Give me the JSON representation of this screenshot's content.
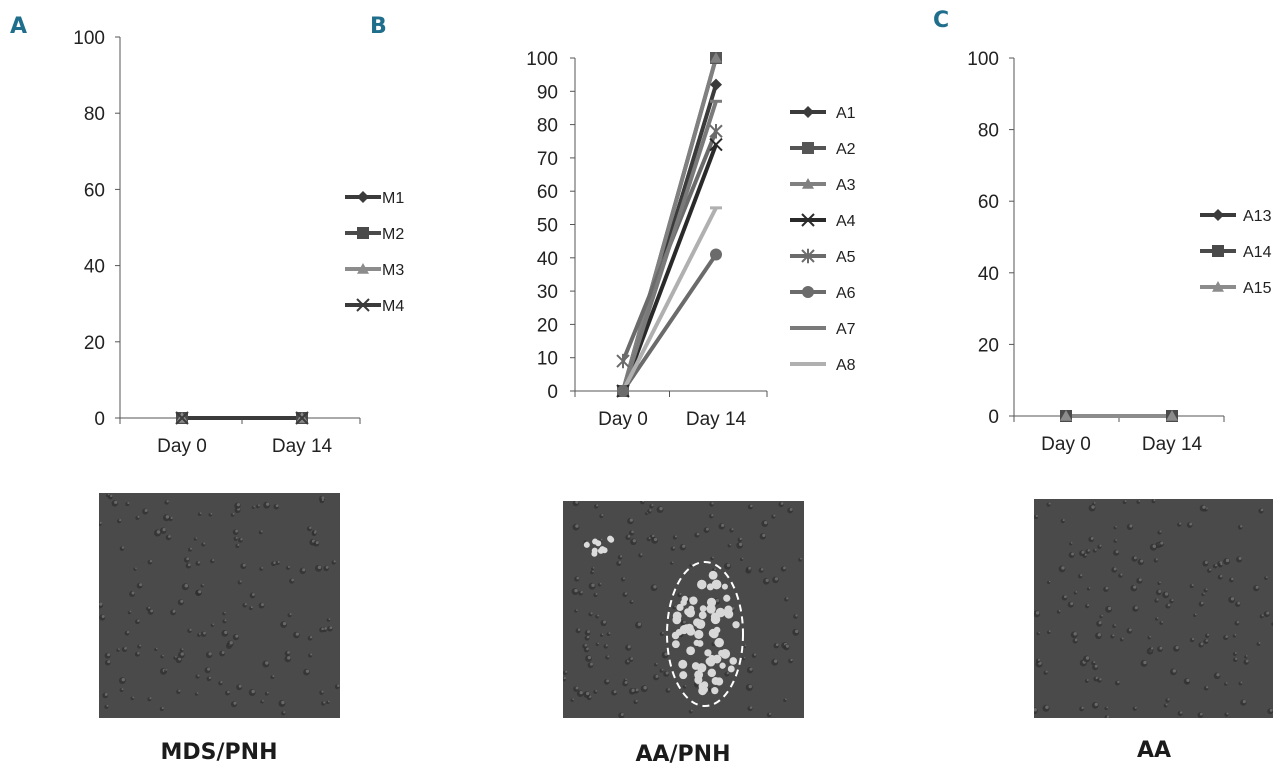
{
  "panels": {
    "a": {
      "letter": "A",
      "caption": "MDS/PNH"
    },
    "b": {
      "letter": "B",
      "caption": "AA/PNH"
    },
    "c": {
      "letter": "C",
      "caption": "AA"
    }
  },
  "colors": {
    "panel_letter": "#1f6e8c",
    "dark": "#3b3b3b",
    "mid": "#6b6b6b",
    "light": "#a6a6a6",
    "photo_bg": "#4a4a4a"
  },
  "chart_data": [
    {
      "type": "line",
      "categories": [
        "Day 0",
        "Day 14"
      ],
      "ylim": [
        0,
        100
      ],
      "yticks": [
        0,
        20,
        40,
        60,
        80,
        100
      ],
      "legend_position": "right",
      "series": [
        {
          "name": "M1",
          "values": [
            0,
            0
          ],
          "marker": "diamond",
          "color": "#3b3b3b"
        },
        {
          "name": "M2",
          "values": [
            0,
            0
          ],
          "marker": "square",
          "color": "#4a4a4a"
        },
        {
          "name": "M3",
          "values": [
            0,
            0
          ],
          "marker": "triangle",
          "color": "#8c8c8c"
        },
        {
          "name": "M4",
          "values": [
            0,
            0
          ],
          "marker": "x",
          "color": "#3b3b3b"
        }
      ]
    },
    {
      "type": "line",
      "categories": [
        "Day 0",
        "Day 14"
      ],
      "ylim": [
        0,
        100
      ],
      "yticks": [
        0,
        10,
        20,
        30,
        40,
        50,
        60,
        70,
        80,
        90,
        100
      ],
      "legend_position": "right",
      "series": [
        {
          "name": "A1",
          "values": [
            0,
            92
          ],
          "marker": "diamond",
          "color": "#3b3b3b"
        },
        {
          "name": "A2",
          "values": [
            0,
            100
          ],
          "marker": "square",
          "color": "#555555"
        },
        {
          "name": "A3",
          "values": [
            0,
            100
          ],
          "marker": "triangle",
          "color": "#808080"
        },
        {
          "name": "A4",
          "values": [
            0,
            74
          ],
          "marker": "x",
          "color": "#2a2a2a"
        },
        {
          "name": "A5",
          "values": [
            9,
            78
          ],
          "marker": "star",
          "color": "#6b6b6b"
        },
        {
          "name": "A6",
          "values": [
            0,
            41
          ],
          "marker": "circle",
          "color": "#6b6b6b"
        },
        {
          "name": "A7",
          "values": [
            0,
            87
          ],
          "marker": "dash",
          "color": "#7a7a7a"
        },
        {
          "name": "A8",
          "values": [
            0,
            55
          ],
          "marker": "dash",
          "color": "#b0b0b0"
        }
      ]
    },
    {
      "type": "line",
      "categories": [
        "Day 0",
        "Day 14"
      ],
      "ylim": [
        0,
        100
      ],
      "yticks": [
        0,
        20,
        40,
        60,
        80,
        100
      ],
      "legend_position": "right",
      "series": [
        {
          "name": "A13",
          "values": [
            0,
            0
          ],
          "marker": "diamond",
          "color": "#3b3b3b"
        },
        {
          "name": "A14",
          "values": [
            0,
            0
          ],
          "marker": "square",
          "color": "#4a4a4a"
        },
        {
          "name": "A15",
          "values": [
            0,
            0
          ],
          "marker": "triangle",
          "color": "#8c8c8c"
        }
      ]
    }
  ]
}
